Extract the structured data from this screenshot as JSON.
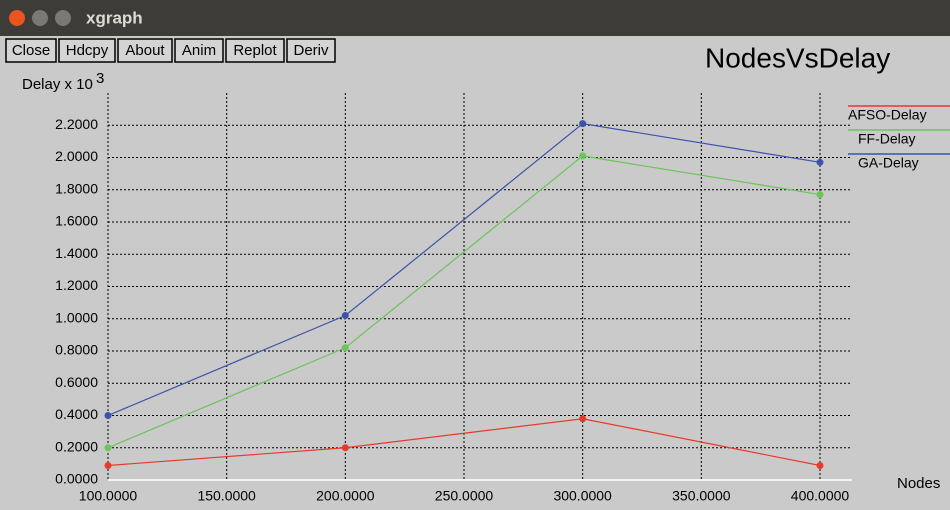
{
  "window": {
    "title": "xgraph",
    "buttons": [
      "Close",
      "Hdcpy",
      "About",
      "Anim",
      "Replot",
      "Deriv"
    ]
  },
  "chart_data": {
    "type": "line",
    "title": "NodesVsDelay",
    "ylabel": "Delay x 10",
    "ylabel_exponent": "3",
    "xlabel": "Nodes",
    "x": [
      100,
      200,
      300,
      400
    ],
    "series": [
      {
        "name": "AFSO-Delay",
        "color": "#e8392c",
        "values": [
          0.09,
          0.2,
          0.38,
          0.09
        ]
      },
      {
        "name": "FF-Delay",
        "color": "#6cc45a",
        "values": [
          0.2,
          0.82,
          2.01,
          1.77
        ]
      },
      {
        "name": "GA-Delay",
        "color": "#3b54a8",
        "values": [
          0.4,
          1.02,
          2.21,
          1.97
        ]
      }
    ],
    "xlim": [
      100,
      400
    ],
    "xticks": [
      {
        "value": 100,
        "label": "100.0000"
      },
      {
        "value": 150,
        "label": "150.0000"
      },
      {
        "value": 200,
        "label": "200.0000"
      },
      {
        "value": 250,
        "label": "250.0000"
      },
      {
        "value": 300,
        "label": "300.0000"
      },
      {
        "value": 350,
        "label": "350.0000"
      },
      {
        "value": 400,
        "label": "400.0000"
      }
    ],
    "ylim": [
      0,
      2.4
    ],
    "yticks": [
      {
        "value": 0,
        "label": "0.0000"
      },
      {
        "value": 0.2,
        "label": "0.2000"
      },
      {
        "value": 0.4,
        "label": "0.4000"
      },
      {
        "value": 0.6,
        "label": "0.6000"
      },
      {
        "value": 0.8,
        "label": "0.8000"
      },
      {
        "value": 1.0,
        "label": "1.0000"
      },
      {
        "value": 1.2,
        "label": "1.2000"
      },
      {
        "value": 1.4,
        "label": "1.4000"
      },
      {
        "value": 1.6,
        "label": "1.6000"
      },
      {
        "value": 1.8,
        "label": "1.8000"
      },
      {
        "value": 2.0,
        "label": "2.0000"
      },
      {
        "value": 2.2,
        "label": "2.2000"
      }
    ],
    "grid": true,
    "legend": "right"
  }
}
